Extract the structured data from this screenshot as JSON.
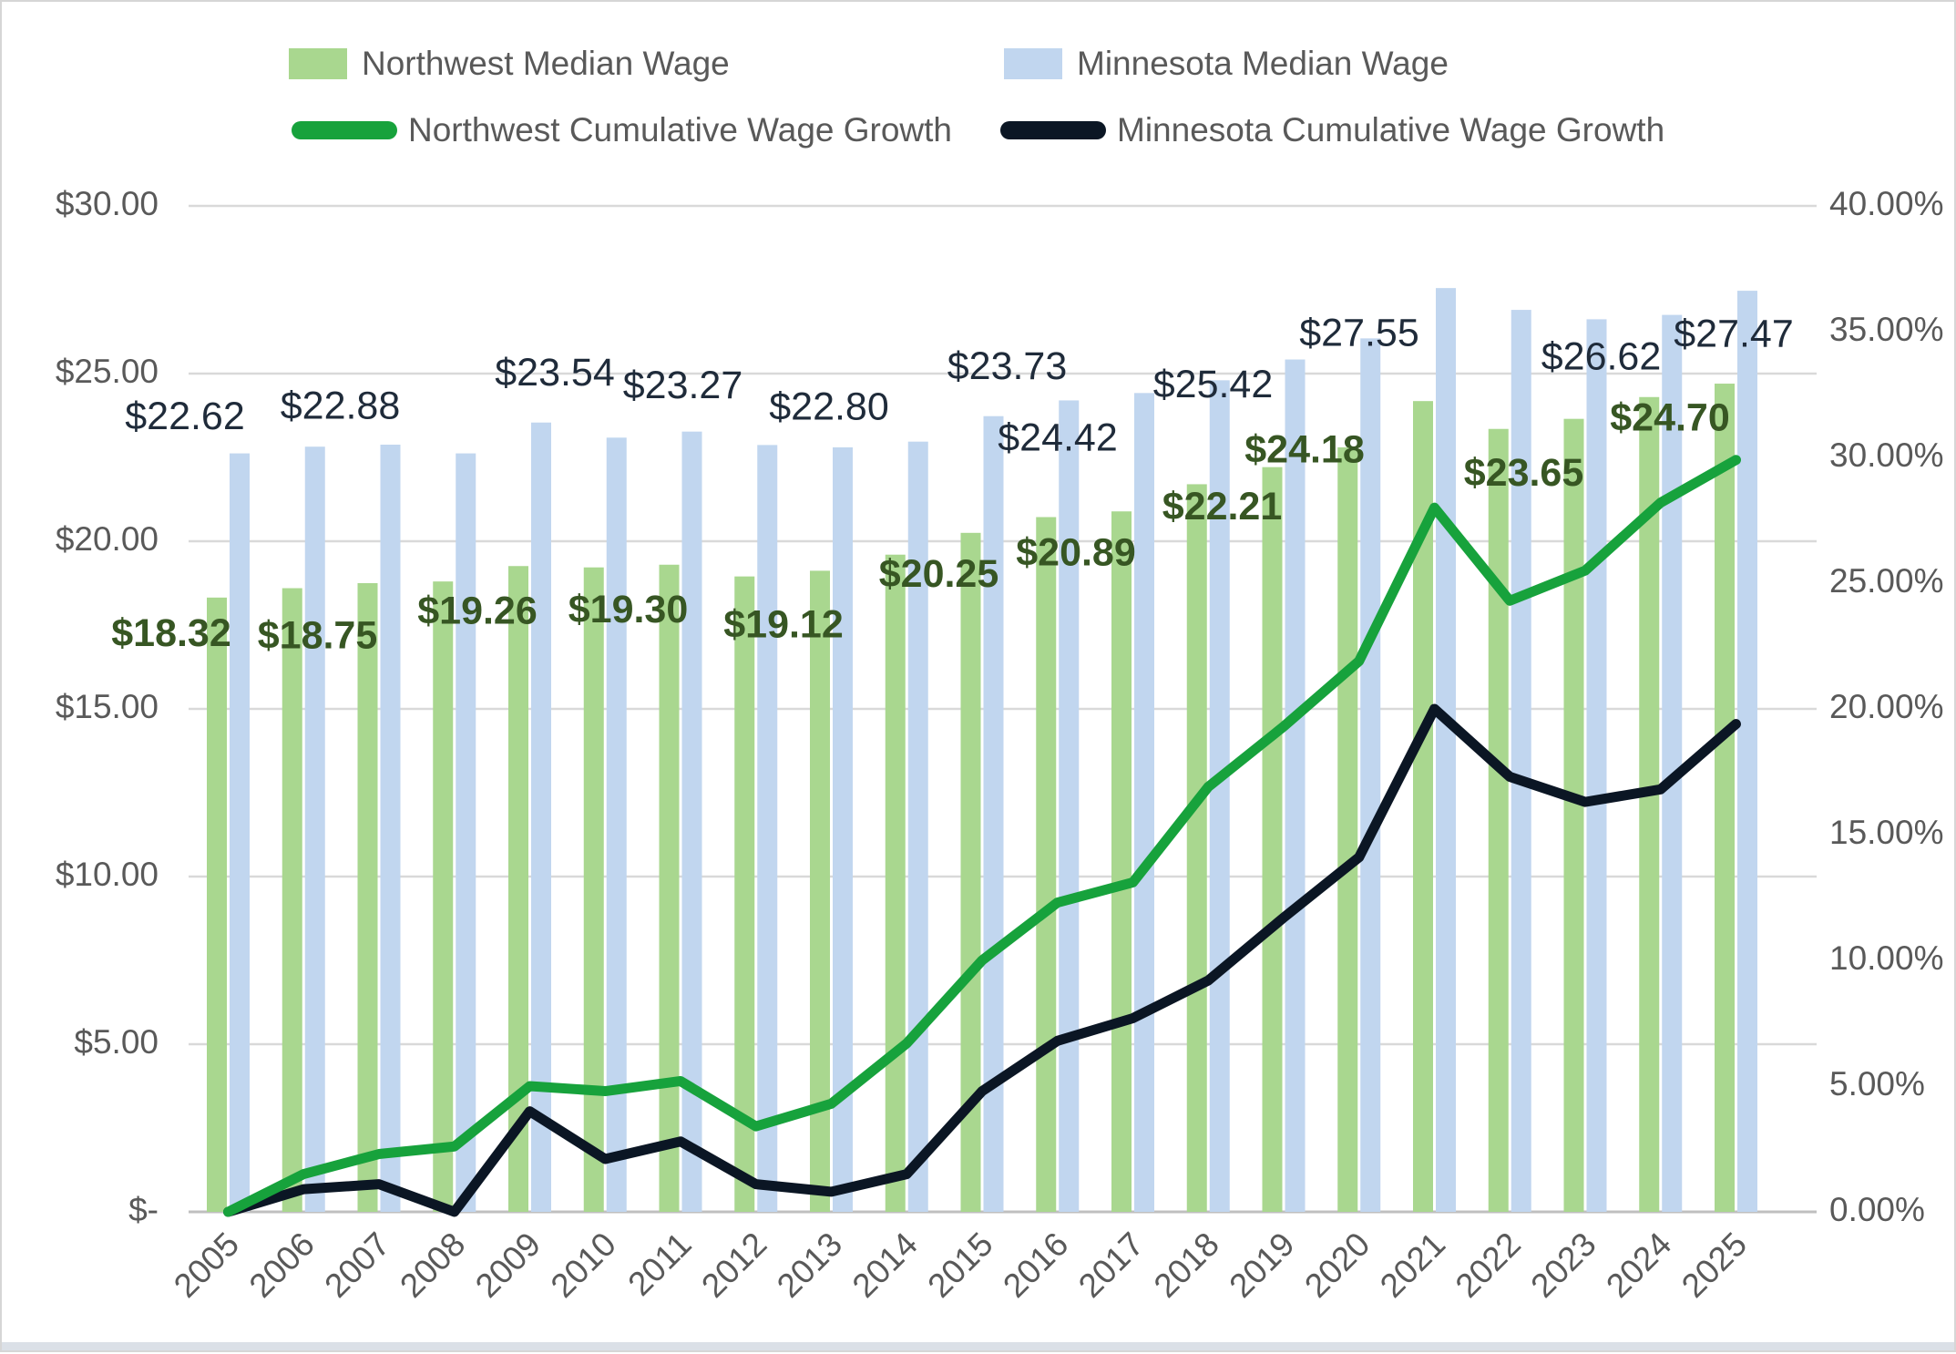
{
  "page": {
    "background": "#ffffff",
    "border_color": "#d6d6d6",
    "bottom_strip_color": "#dbe0e7",
    "gridline_color": "#d9d9d9",
    "baseline_color": "#bfbfbf",
    "axis_text_color": "#595959",
    "nw_label_color": "#375623",
    "mn_label_color": "#1f2b3a"
  },
  "legend": {
    "items": [
      {
        "label": "Northwest Median Wage",
        "color": "#a9d78f",
        "shape": "rect"
      },
      {
        "label": "Minnesota Median Wage",
        "color": "#c1d6ef",
        "shape": "rect"
      },
      {
        "label": "Northwest Cumulative Wage Growth",
        "color": "#17a23c",
        "shape": "line"
      },
      {
        "label": "Minnesota Cumulative Wage Growth",
        "color": "#0b1624",
        "shape": "line"
      }
    ]
  },
  "chart_data": {
    "type": "bar",
    "subtype": "combo-bar-line-dual-axis",
    "categories": [
      "2005",
      "2006",
      "2007",
      "2008",
      "2009",
      "2010",
      "2011",
      "2012",
      "2013",
      "2014",
      "2015",
      "2016",
      "2017",
      "2018",
      "2019",
      "2020",
      "2021",
      "2022",
      "2023",
      "2024",
      "2025"
    ],
    "series": [
      {
        "name": "Northwest Median Wage",
        "type": "bar",
        "axis": "left",
        "color": "#a9d78f",
        "values": [
          18.32,
          18.6,
          18.75,
          18.8,
          19.26,
          19.22,
          19.3,
          18.95,
          19.12,
          19.6,
          20.25,
          20.72,
          20.89,
          21.7,
          22.21,
          22.8,
          24.18,
          23.35,
          23.65,
          24.3,
          24.7
        ],
        "labels": [
          "$18.32",
          null,
          "$18.75",
          null,
          "$19.26",
          null,
          "$19.30",
          null,
          "$19.12",
          null,
          "$20.25",
          null,
          "$20.89",
          null,
          "$22.21",
          null,
          "$24.18",
          null,
          "$23.65",
          null,
          "$24.70"
        ]
      },
      {
        "name": "Minnesota Median Wage",
        "type": "bar",
        "axis": "left",
        "color": "#c1d6ef",
        "values": [
          22.62,
          22.82,
          22.88,
          22.62,
          23.54,
          23.09,
          23.27,
          22.87,
          22.8,
          22.97,
          23.73,
          24.2,
          24.42,
          24.8,
          25.42,
          26.05,
          27.55,
          26.9,
          26.62,
          26.75,
          27.47
        ],
        "labels": [
          "$22.62",
          null,
          "$22.88",
          null,
          "$23.54",
          null,
          "$23.27",
          null,
          "$22.80",
          null,
          "$23.73",
          null,
          "$24.42",
          null,
          "$25.42",
          null,
          "$27.55",
          null,
          "$26.62",
          null,
          "$27.47"
        ]
      },
      {
        "name": "Northwest Cumulative Wage Growth",
        "type": "line",
        "axis": "right",
        "color": "#17a23c",
        "values": [
          0.0,
          1.5,
          2.3,
          2.6,
          5.0,
          4.8,
          5.2,
          3.4,
          4.3,
          6.7,
          10.0,
          12.3,
          13.1,
          16.9,
          19.3,
          21.9,
          28.0,
          24.3,
          25.5,
          28.2,
          29.9
        ]
      },
      {
        "name": "Minnesota Cumulative Wage Growth",
        "type": "line",
        "axis": "right",
        "color": "#0b1624",
        "values": [
          0.0,
          0.9,
          1.1,
          0.0,
          4.0,
          2.1,
          2.8,
          1.1,
          0.8,
          1.5,
          4.8,
          6.8,
          7.7,
          9.2,
          11.7,
          14.1,
          20.0,
          17.3,
          16.3,
          16.8,
          19.4
        ]
      }
    ],
    "left_axis": {
      "title": "",
      "min": 0,
      "max": 30,
      "step": 5,
      "tick_labels": [
        "$30.00",
        "$25.00",
        "$20.00",
        "$15.00",
        "$10.00",
        "$5.00",
        "$-"
      ]
    },
    "right_axis": {
      "title": "",
      "min": 0,
      "max": 40,
      "step": 5,
      "tick_labels": [
        "40.00%",
        "35.00%",
        "30.00%",
        "25.00%",
        "20.00%",
        "15.00%",
        "10.00%",
        "5.00%",
        "0.00%"
      ]
    },
    "grid": "horizontal",
    "legend_position": "top"
  }
}
